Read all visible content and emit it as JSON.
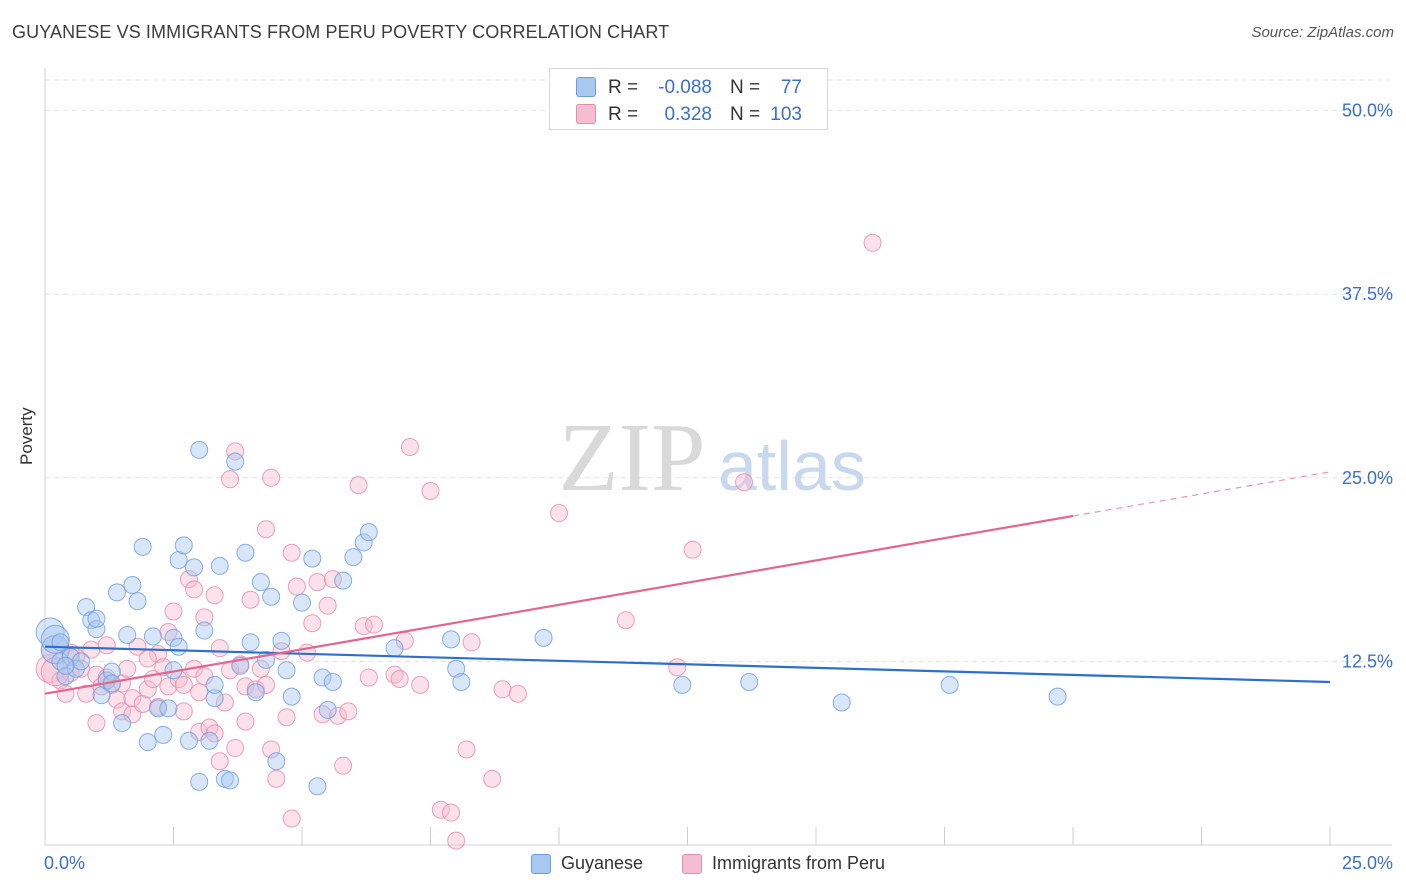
{
  "title": "GUYANESE VS IMMIGRANTS FROM PERU POVERTY CORRELATION CHART",
  "source": "Source: ZipAtlas.com",
  "colors": {
    "guyanese_fill": "#a9c8f0",
    "guyanese_stroke": "#6a9ee0",
    "guyanese_line": "#2f6fcc",
    "peru_fill": "#f5bdd0",
    "peru_stroke": "#e88aaa",
    "peru_line": "#e06890",
    "tick_label": "#3a70c8",
    "grid": "#e3e3e3"
  },
  "legend_top": {
    "rows": [
      {
        "r_label": "R =",
        "r_value": "-0.088",
        "n_label": "N =",
        "n_value": "77"
      },
      {
        "r_label": "R =",
        "r_value": "0.328",
        "n_label": "N =",
        "n_value": "103"
      }
    ]
  },
  "legend_bottom": [
    "Guyanese",
    "Immigrants from Peru"
  ],
  "watermark": {
    "zip": "ZIP",
    "atlas": "atlas"
  },
  "chart_data": {
    "type": "scatter",
    "title": "GUYANESE VS IMMIGRANTS FROM PERU POVERTY CORRELATION CHART",
    "xlabel": "",
    "ylabel": "Poverty",
    "xlim": [
      0,
      25
    ],
    "ylim": [
      0,
      50
    ],
    "x_tick_labels": [
      "0.0%",
      "25.0%"
    ],
    "y_ticks": [
      12.5,
      25.0,
      37.5,
      50.0
    ],
    "y_tick_labels": [
      "12.5%",
      "25.0%",
      "37.5%",
      "50.0%"
    ],
    "grid": true,
    "legend_position": "top-center",
    "series": [
      {
        "name": "Guyanese",
        "r": -0.088,
        "n": 77,
        "trend": {
          "x": [
            0,
            25
          ],
          "y": [
            13.5,
            11.1
          ]
        },
        "points": [
          [
            0.1,
            14.5
          ],
          [
            0.2,
            13.3
          ],
          [
            0.2,
            14.0
          ],
          [
            0.3,
            12.5
          ],
          [
            0.4,
            11.5
          ],
          [
            0.5,
            12.8
          ],
          [
            0.6,
            12.0
          ],
          [
            0.7,
            12.5
          ],
          [
            0.8,
            16.2
          ],
          [
            0.9,
            15.3
          ],
          [
            1.0,
            14.7
          ],
          [
            1.0,
            15.4
          ],
          [
            1.1,
            10.2
          ],
          [
            1.2,
            11.2
          ],
          [
            1.3,
            11.8
          ],
          [
            1.3,
            11.0
          ],
          [
            1.4,
            17.2
          ],
          [
            1.5,
            8.3
          ],
          [
            1.6,
            14.3
          ],
          [
            1.7,
            17.7
          ],
          [
            1.8,
            16.6
          ],
          [
            1.9,
            20.3
          ],
          [
            2.0,
            7.0
          ],
          [
            2.1,
            14.2
          ],
          [
            2.2,
            9.3
          ],
          [
            2.3,
            7.5
          ],
          [
            2.4,
            9.3
          ],
          [
            2.5,
            14.1
          ],
          [
            2.5,
            11.9
          ],
          [
            2.6,
            13.5
          ],
          [
            2.6,
            19.4
          ],
          [
            2.7,
            20.4
          ],
          [
            2.8,
            7.1
          ],
          [
            2.9,
            18.9
          ],
          [
            3.0,
            26.9
          ],
          [
            3.0,
            4.3
          ],
          [
            3.1,
            14.6
          ],
          [
            3.2,
            7.1
          ],
          [
            3.3,
            10.0
          ],
          [
            3.3,
            10.9
          ],
          [
            3.4,
            19.0
          ],
          [
            3.5,
            4.5
          ],
          [
            3.6,
            4.4
          ],
          [
            3.7,
            26.1
          ],
          [
            3.8,
            12.2
          ],
          [
            3.9,
            19.9
          ],
          [
            4.0,
            13.8
          ],
          [
            4.1,
            10.4
          ],
          [
            4.2,
            17.9
          ],
          [
            4.3,
            12.6
          ],
          [
            4.4,
            16.9
          ],
          [
            4.5,
            5.7
          ],
          [
            4.6,
            13.9
          ],
          [
            4.7,
            11.9
          ],
          [
            4.8,
            10.1
          ],
          [
            5.0,
            16.5
          ],
          [
            5.2,
            19.5
          ],
          [
            5.3,
            4.0
          ],
          [
            5.4,
            11.4
          ],
          [
            5.5,
            9.2
          ],
          [
            5.6,
            11.1
          ],
          [
            5.8,
            18.0
          ],
          [
            6.0,
            19.6
          ],
          [
            6.2,
            20.6
          ],
          [
            6.3,
            21.3
          ],
          [
            6.8,
            13.4
          ],
          [
            7.9,
            14.0
          ],
          [
            8.0,
            12.0
          ],
          [
            8.1,
            11.1
          ],
          [
            9.7,
            14.1
          ],
          [
            12.4,
            10.9
          ],
          [
            13.7,
            11.1
          ],
          [
            15.5,
            9.7
          ],
          [
            17.6,
            10.9
          ],
          [
            19.7,
            10.1
          ],
          [
            0.3,
            13.8
          ],
          [
            0.4,
            12.2
          ]
        ]
      },
      {
        "name": "Immigrants from Peru",
        "r": 0.328,
        "n": 103,
        "trend": {
          "x": [
            0,
            20
          ],
          "y": [
            10.3,
            22.4
          ]
        },
        "trend_dashed": {
          "x": [
            20,
            25
          ],
          "y": [
            22.4,
            25.4
          ]
        },
        "points": [
          [
            0.1,
            12.0
          ],
          [
            0.2,
            13.3
          ],
          [
            0.3,
            11.2
          ],
          [
            0.4,
            10.3
          ],
          [
            0.5,
            11.7
          ],
          [
            0.6,
            12.8
          ],
          [
            0.7,
            12.0
          ],
          [
            0.8,
            10.3
          ],
          [
            0.9,
            13.3
          ],
          [
            1.0,
            8.3
          ],
          [
            1.0,
            11.6
          ],
          [
            1.1,
            10.8
          ],
          [
            1.2,
            13.6
          ],
          [
            1.3,
            10.9
          ],
          [
            1.4,
            9.9
          ],
          [
            1.5,
            11.0
          ],
          [
            1.5,
            9.1
          ],
          [
            1.6,
            12.0
          ],
          [
            1.7,
            8.9
          ],
          [
            1.7,
            10.0
          ],
          [
            1.8,
            13.5
          ],
          [
            1.9,
            9.6
          ],
          [
            2.0,
            10.6
          ],
          [
            2.1,
            11.3
          ],
          [
            2.2,
            9.4
          ],
          [
            2.2,
            13.0
          ],
          [
            2.3,
            12.1
          ],
          [
            2.4,
            10.8
          ],
          [
            2.4,
            14.5
          ],
          [
            2.5,
            15.9
          ],
          [
            2.6,
            11.3
          ],
          [
            2.7,
            9.1
          ],
          [
            2.7,
            10.9
          ],
          [
            2.8,
            18.1
          ],
          [
            2.9,
            12.0
          ],
          [
            2.9,
            17.4
          ],
          [
            3.0,
            10.4
          ],
          [
            3.0,
            7.7
          ],
          [
            3.1,
            15.5
          ],
          [
            3.1,
            11.5
          ],
          [
            3.2,
            8.0
          ],
          [
            3.3,
            7.6
          ],
          [
            3.3,
            17.0
          ],
          [
            3.4,
            5.7
          ],
          [
            3.4,
            13.4
          ],
          [
            3.5,
            9.7
          ],
          [
            3.6,
            24.9
          ],
          [
            3.7,
            26.8
          ],
          [
            3.7,
            6.6
          ],
          [
            3.8,
            12.3
          ],
          [
            3.9,
            10.8
          ],
          [
            3.9,
            8.4
          ],
          [
            4.0,
            16.7
          ],
          [
            4.1,
            10.6
          ],
          [
            4.2,
            12.0
          ],
          [
            4.3,
            21.5
          ],
          [
            4.4,
            6.5
          ],
          [
            4.4,
            25.0
          ],
          [
            4.5,
            4.5
          ],
          [
            4.6,
            13.2
          ],
          [
            4.7,
            8.7
          ],
          [
            4.8,
            1.8
          ],
          [
            4.8,
            19.9
          ],
          [
            4.9,
            17.6
          ],
          [
            5.1,
            13.1
          ],
          [
            5.2,
            15.1
          ],
          [
            5.3,
            17.9
          ],
          [
            5.4,
            8.9
          ],
          [
            5.5,
            16.3
          ],
          [
            5.6,
            18.1
          ],
          [
            5.7,
            8.8
          ],
          [
            5.8,
            5.4
          ],
          [
            6.1,
            24.5
          ],
          [
            6.2,
            14.9
          ],
          [
            6.3,
            11.4
          ],
          [
            6.4,
            15.0
          ],
          [
            6.8,
            11.6
          ],
          [
            6.9,
            11.3
          ],
          [
            7.0,
            13.9
          ],
          [
            7.1,
            27.1
          ],
          [
            7.3,
            10.9
          ],
          [
            7.7,
            2.4
          ],
          [
            7.9,
            2.2
          ],
          [
            8.0,
            0.3
          ],
          [
            8.2,
            6.5
          ],
          [
            8.3,
            13.8
          ],
          [
            8.7,
            4.5
          ],
          [
            8.9,
            10.6
          ],
          [
            9.2,
            10.3
          ],
          [
            10.0,
            22.6
          ],
          [
            11.3,
            15.3
          ],
          [
            12.3,
            12.1
          ],
          [
            12.6,
            20.1
          ],
          [
            13.6,
            24.7
          ],
          [
            16.1,
            41.0
          ],
          [
            7.5,
            24.1
          ],
          [
            0.2,
            11.8
          ],
          [
            0.5,
            13.1
          ],
          [
            1.2,
            11.4
          ],
          [
            2.0,
            12.7
          ],
          [
            3.6,
            11.9
          ],
          [
            4.3,
            10.9
          ],
          [
            5.9,
            9.1
          ]
        ]
      }
    ]
  }
}
